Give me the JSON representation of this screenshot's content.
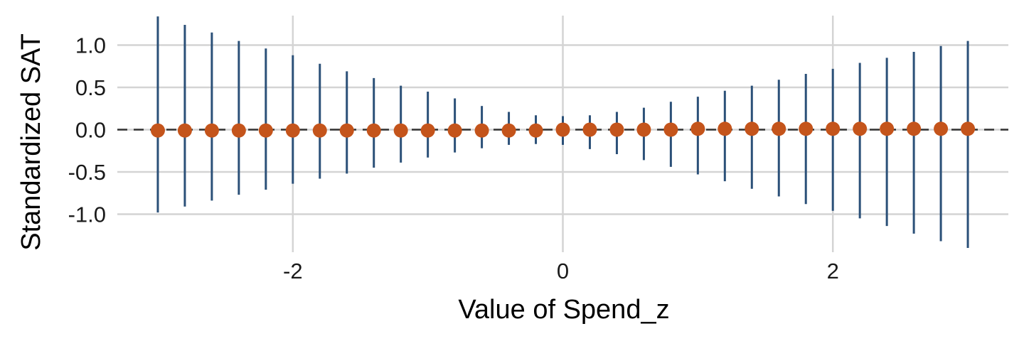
{
  "chart_data": {
    "type": "scatter",
    "title": "",
    "xlabel": "Value of Spend_z",
    "ylabel": "Standardized SAT",
    "xlim": [
      -3.3,
      3.3
    ],
    "ylim": [
      -1.45,
      1.45
    ],
    "x_ticks": [
      -2,
      0,
      2
    ],
    "x_tick_labels": [
      "-2",
      "0",
      "2"
    ],
    "y_ticks": [
      -1.0,
      -0.5,
      0.0,
      0.5,
      1.0
    ],
    "y_tick_labels": [
      "-1.0",
      "-0.5",
      "0.0",
      "0.5",
      "1.0"
    ],
    "grid": true,
    "reference_line": {
      "y": 0,
      "style": "dashed"
    },
    "series": [
      {
        "x": [
          -3.0,
          -2.8,
          -2.6,
          -2.4,
          -2.2,
          -2.0,
          -1.8,
          -1.6,
          -1.4,
          -1.2,
          -1.0,
          -0.8,
          -0.6,
          -0.4,
          -0.2,
          0.0,
          0.2,
          0.4,
          0.6,
          0.8,
          1.0,
          1.2,
          1.4,
          1.6,
          1.8,
          2.0,
          2.2,
          2.4,
          2.6,
          2.8,
          3.0
        ],
        "y": [
          -0.01,
          -0.01,
          -0.01,
          -0.01,
          -0.01,
          -0.01,
          -0.01,
          -0.01,
          -0.01,
          -0.01,
          -0.01,
          -0.01,
          -0.01,
          -0.01,
          -0.01,
          0.0,
          0.0,
          0.0,
          0.0,
          0.0,
          0.01,
          0.01,
          0.01,
          0.01,
          0.01,
          0.01,
          0.01,
          0.01,
          0.01,
          0.01,
          0.01
        ],
        "lower": [
          -0.98,
          -0.91,
          -0.84,
          -0.77,
          -0.71,
          -0.64,
          -0.58,
          -0.52,
          -0.45,
          -0.39,
          -0.33,
          -0.27,
          -0.22,
          -0.18,
          -0.17,
          -0.18,
          -0.23,
          -0.29,
          -0.36,
          -0.44,
          -0.53,
          -0.61,
          -0.7,
          -0.79,
          -0.88,
          -0.96,
          -1.05,
          -1.14,
          -1.23,
          -1.32,
          -1.4
        ],
        "upper": [
          1.34,
          1.24,
          1.15,
          1.05,
          0.96,
          0.88,
          0.78,
          0.69,
          0.61,
          0.52,
          0.45,
          0.37,
          0.28,
          0.21,
          0.17,
          0.16,
          0.17,
          0.21,
          0.26,
          0.33,
          0.39,
          0.46,
          0.52,
          0.59,
          0.66,
          0.72,
          0.79,
          0.85,
          0.92,
          0.99,
          1.05
        ]
      }
    ],
    "colors": {
      "point": "#c4541b",
      "errorbar": "#2b5078",
      "grid": "#d4d4d4",
      "reference_line": "#333333"
    }
  }
}
